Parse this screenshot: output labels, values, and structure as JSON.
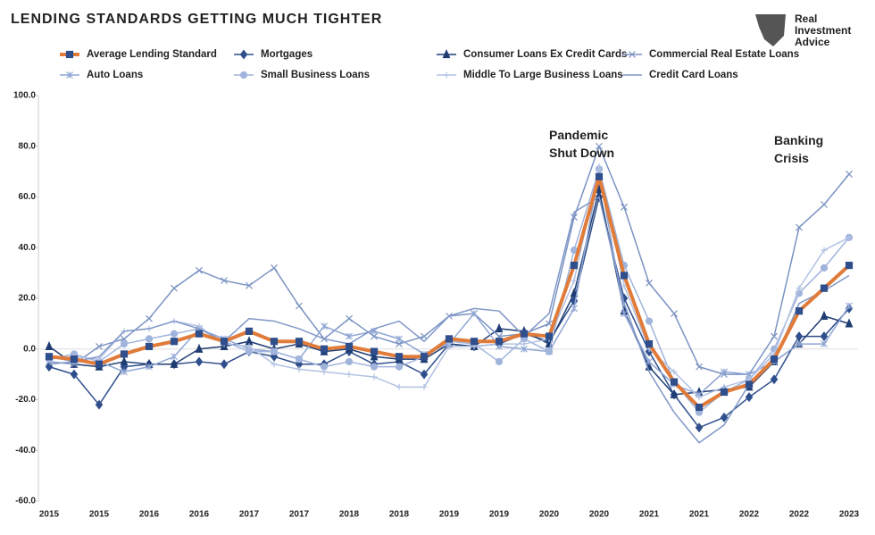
{
  "chart_data": {
    "type": "line",
    "title": "LENDING STANDARDS GETTING MUCH TIGHTER",
    "brand": [
      "Real",
      "Investment",
      "Advice"
    ],
    "annotations": [
      {
        "lines": [
          "Pandemic",
          "Shut Down"
        ],
        "index": 21,
        "value": 84
      },
      {
        "lines": [
          "Banking",
          "Crisis"
        ],
        "index": 30,
        "value": 82
      }
    ],
    "categories": [
      "2015",
      null,
      "2015",
      null,
      "2016",
      null,
      "2016",
      null,
      "2017",
      null,
      "2017",
      null,
      "2018",
      null,
      "2018",
      null,
      "2019",
      null,
      "2019",
      null,
      "2020",
      null,
      "2020",
      null,
      "2021",
      null,
      "2021",
      null,
      "2022",
      null,
      "2022",
      null,
      "2023"
    ],
    "ylim": [
      -60,
      100
    ],
    "yticks": [
      {
        "value": -60,
        "label": "-60.0"
      },
      {
        "value": -40,
        "label": "-40.0"
      },
      {
        "value": -20,
        "label": "-20.0"
      },
      {
        "value": 0,
        "label": "0.0"
      },
      {
        "value": 20,
        "label": "20.0"
      },
      {
        "value": 40,
        "label": "40.0"
      },
      {
        "value": 60,
        "label": "60.0"
      },
      {
        "value": 80,
        "label": "80.0"
      },
      {
        "value": 100,
        "label": "100.0"
      }
    ],
    "series": [
      {
        "name": "Average Lending Standard",
        "color": "#e07b39",
        "marker": "square",
        "width": 4,
        "values": [
          -3,
          -4,
          -6,
          -2,
          1,
          3,
          6,
          3,
          7,
          3,
          3,
          0,
          1,
          -1,
          -3,
          -3,
          4,
          3,
          3,
          6,
          5,
          33,
          68,
          29,
          2,
          -13,
          -23,
          -17,
          -14,
          -4,
          15,
          24,
          33
        ]
      },
      {
        "name": "Mortgages",
        "color": "#2f4e8c",
        "marker": "diamond",
        "width": 1.5,
        "values": [
          -7,
          -10,
          -22,
          -7,
          -6,
          -6,
          -5,
          -6,
          -1,
          -3,
          -6,
          -6,
          -1,
          -6,
          -5,
          -10,
          2,
          1,
          2,
          6,
          3,
          19,
          60,
          20,
          -1,
          -18,
          -31,
          -27,
          -19,
          -12,
          5,
          5,
          16
        ]
      },
      {
        "name": "Consumer Loans Ex Credit Cards",
        "color": "#1f3d73",
        "marker": "triangle",
        "width": 1.5,
        "values": [
          1,
          -6,
          -7,
          -5,
          -6,
          -6,
          0,
          1,
          3,
          0,
          2,
          -1,
          0,
          -3,
          -4,
          -4,
          2,
          1,
          8,
          7,
          2,
          22,
          63,
          15,
          -7,
          -18,
          -17,
          -16,
          -15,
          -5,
          2,
          13,
          10
        ]
      },
      {
        "name": "Commercial Real Estate Loans",
        "color": "#7b93c2",
        "marker": "x",
        "width": 1.5,
        "values": [
          -5,
          -6,
          1,
          4,
          12,
          24,
          31,
          27,
          25,
          32,
          17,
          4,
          12,
          5,
          2,
          5,
          13,
          14,
          5,
          6,
          10,
          52,
          80,
          56,
          26,
          14,
          -7,
          -10,
          -10,
          5,
          48,
          57,
          69
        ]
      },
      {
        "name": "Auto Loans",
        "color": "#8fa6d4",
        "marker": "asterisk",
        "width": 1.5,
        "values": [
          -3,
          -5,
          -5,
          -9,
          -7,
          -3,
          8,
          4,
          0,
          -1,
          -4,
          9,
          5,
          7,
          4,
          -2,
          2,
          14,
          1,
          0,
          -1,
          16,
          70,
          14,
          -5,
          -14,
          -18,
          -9,
          -10,
          -5,
          2,
          2,
          17
        ]
      },
      {
        "name": "Small Business Loans",
        "color": "#a1b4dc",
        "marker": "circle",
        "width": 1.5,
        "values": [
          -4,
          -2,
          -5,
          2,
          4,
          6,
          8,
          3,
          -1,
          -1,
          -4,
          -7,
          -5,
          -7,
          -7,
          -3,
          3,
          2,
          -5,
          4,
          -1,
          39,
          71,
          33,
          11,
          -13,
          -25,
          -17,
          -12,
          0,
          22,
          32,
          44
        ]
      },
      {
        "name": "Middle To Large Business Loans",
        "color": "#b2c2e3",
        "marker": "plus",
        "width": 1.5,
        "values": [
          -4,
          -3,
          -4,
          7,
          8,
          11,
          9,
          2,
          1,
          -6,
          -8,
          -9,
          -10,
          -11,
          -15,
          -15,
          1,
          1,
          2,
          2,
          4,
          27,
          72,
          25,
          0,
          -9,
          -19,
          -15,
          -12,
          -2,
          24,
          39,
          44
        ]
      },
      {
        "name": "Credit Card Loans",
        "color": "#8097c8",
        "marker": "none",
        "width": 1.5,
        "values": [
          -6,
          -5,
          -3,
          7,
          8,
          11,
          8,
          3,
          12,
          11,
          8,
          4,
          2,
          8,
          11,
          3,
          13,
          16,
          15,
          5,
          14,
          54,
          60,
          18,
          -9,
          -25,
          -37,
          -30,
          -14,
          -5,
          18,
          23,
          29
        ]
      }
    ]
  }
}
